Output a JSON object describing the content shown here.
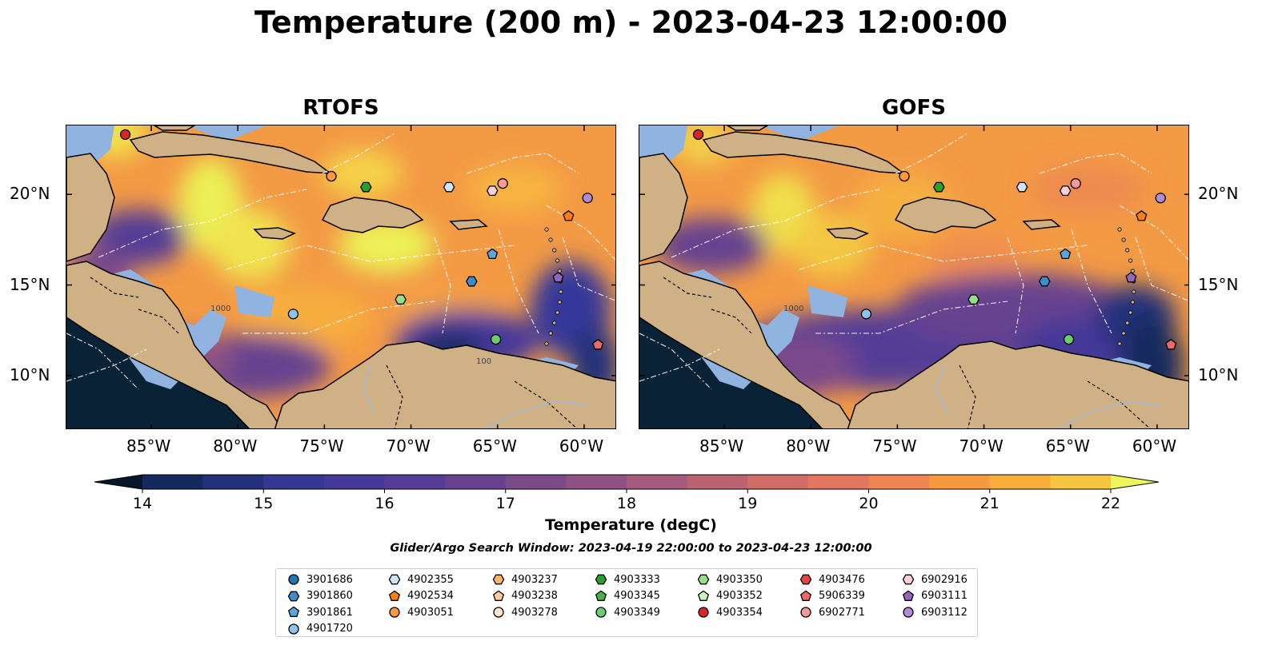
{
  "figure": {
    "title": "Temperature (200 m) - 2023-04-23 12:00:00",
    "window_text": "Glider/Argo Search Window: 2023-04-19 22:00:00 to 2023-04-23 12:00:00"
  },
  "panels": [
    {
      "title": "RTOFS"
    },
    {
      "title": "GOFS"
    }
  ],
  "axes": {
    "lon_ticks": [
      "85°W",
      "80°W",
      "75°W",
      "70°W",
      "65°W",
      "60°W"
    ],
    "lat_ticks": [
      "20°N",
      "15°N",
      "10°N"
    ],
    "lon_values": [
      -85,
      -80,
      -75,
      -70,
      -65,
      -60
    ],
    "lat_values": [
      20,
      15,
      10
    ]
  },
  "colorbar": {
    "label": "Temperature (degC)",
    "ticks": [
      "14",
      "15",
      "16",
      "17",
      "18",
      "19",
      "20",
      "21",
      "22"
    ],
    "min": 14,
    "max": 22,
    "step": 0.5,
    "colors": [
      "#0b2440",
      "#14295e",
      "#24307a",
      "#343794",
      "#44389a",
      "#553d96",
      "#66428f",
      "#7a4a8b",
      "#8f5283",
      "#a55b7c",
      "#bc6372",
      "#d16c67",
      "#e27660",
      "#ef8551",
      "#f6993f",
      "#f9ae3c",
      "#f7c640",
      "#efe24d"
    ],
    "under_color": "#06182a",
    "over_color": "#eef55a"
  },
  "contour_labels": [
    "1000",
    "100"
  ],
  "legend": {
    "items": [
      {
        "id": "3901686",
        "shape": "circle",
        "color": "#1f77b4"
      },
      {
        "id": "3901860",
        "shape": "hexagon",
        "color": "#3e8ccc"
      },
      {
        "id": "3901861",
        "shape": "pentagon",
        "color": "#5ca5dc"
      },
      {
        "id": "4901720",
        "shape": "circle",
        "color": "#8fc3ea"
      },
      {
        "id": "4902355",
        "shape": "hexagon",
        "color": "#cfe5f7"
      },
      {
        "id": "4902534",
        "shape": "pentagon",
        "color": "#ff7f0e"
      },
      {
        "id": "4903051",
        "shape": "circle",
        "color": "#ff9a3c"
      },
      {
        "id": "4903237",
        "shape": "hexagon",
        "color": "#ffb366"
      },
      {
        "id": "4903238",
        "shape": "pentagon",
        "color": "#ffcc99"
      },
      {
        "id": "4903278",
        "shape": "circle",
        "color": "#ffe5cc"
      },
      {
        "id": "4903333",
        "shape": "hexagon",
        "color": "#2ca02c"
      },
      {
        "id": "4903345",
        "shape": "pentagon",
        "color": "#4bb34b"
      },
      {
        "id": "4903349",
        "shape": "circle",
        "color": "#6fcb6f"
      },
      {
        "id": "4903350",
        "shape": "hexagon",
        "color": "#98df8a"
      },
      {
        "id": "4903352",
        "shape": "pentagon",
        "color": "#c9f0c0"
      },
      {
        "id": "4903354",
        "shape": "circle",
        "color": "#d62728"
      },
      {
        "id": "4903476",
        "shape": "hexagon",
        "color": "#e04444"
      },
      {
        "id": "5906339",
        "shape": "pentagon",
        "color": "#ee6a6a"
      },
      {
        "id": "6902771",
        "shape": "circle",
        "color": "#f59a9a"
      },
      {
        "id": "6902916",
        "shape": "hexagon",
        "color": "#fbd0d4"
      },
      {
        "id": "6903111",
        "shape": "pentagon",
        "color": "#9467bd"
      },
      {
        "id": "6903112",
        "shape": "circle",
        "color": "#b38ad6"
      }
    ]
  },
  "markers": [
    {
      "id": "4903354",
      "lon": -86.5,
      "lat": 23.3
    },
    {
      "id": "4903051",
      "lon": -74.6,
      "lat": 21.0
    },
    {
      "id": "4903333",
      "lon": -72.6,
      "lat": 20.4
    },
    {
      "id": "4902355",
      "lon": -67.8,
      "lat": 20.4
    },
    {
      "id": "6902916",
      "lon": -65.3,
      "lat": 20.2
    },
    {
      "id": "6902771",
      "lon": -64.7,
      "lat": 20.6
    },
    {
      "id": "6903112",
      "lon": -59.8,
      "lat": 19.8
    },
    {
      "id": "4902534",
      "lon": -60.9,
      "lat": 18.8
    },
    {
      "id": "3901861",
      "lon": -65.3,
      "lat": 16.7
    },
    {
      "id": "3901860",
      "lon": -66.5,
      "lat": 15.2
    },
    {
      "id": "6903111",
      "lon": -61.5,
      "lat": 15.4
    },
    {
      "id": "4903350",
      "lon": -70.6,
      "lat": 14.2
    },
    {
      "id": "4901720",
      "lon": -76.8,
      "lat": 13.4
    },
    {
      "id": "4903349",
      "lon": -65.1,
      "lat": 12.0
    },
    {
      "id": "5906339",
      "lon": -59.2,
      "lat": 11.7
    }
  ]
}
